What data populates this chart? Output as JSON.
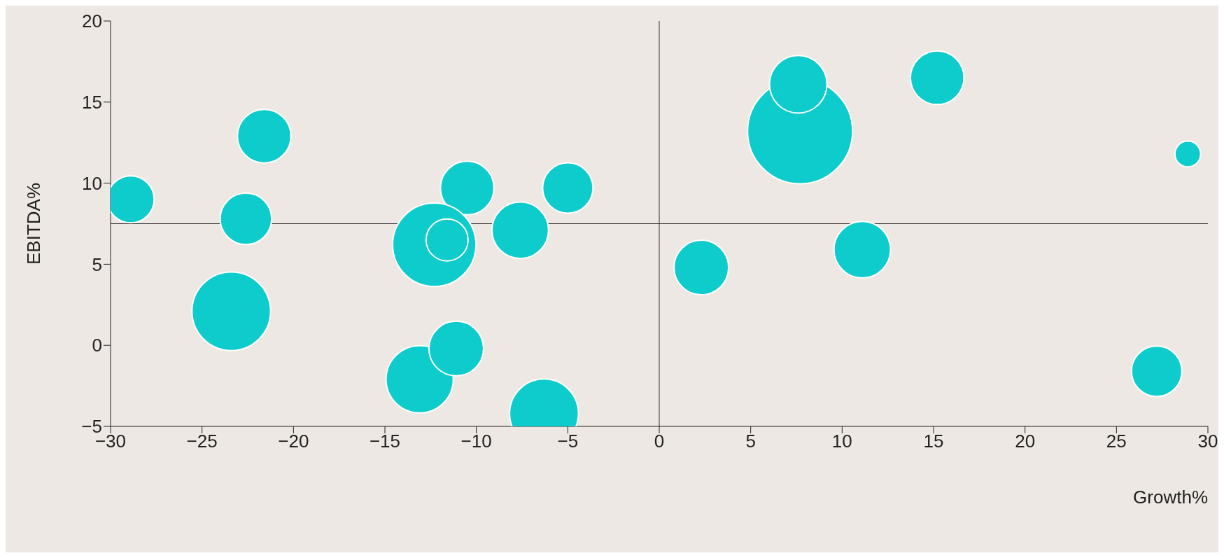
{
  "chart_data": {
    "type": "bubble",
    "xlabel": "Growth%",
    "ylabel": "EBITDA%",
    "xlim": [
      -30,
      30
    ],
    "xticks": [
      -30,
      -25,
      -20,
      -15,
      -10,
      -5,
      0,
      5,
      10,
      15,
      20,
      25,
      30
    ],
    "ylim": [
      -5,
      20
    ],
    "yticks": [
      -5,
      0,
      5,
      10,
      15,
      20
    ],
    "grid": false,
    "legend": false,
    "ref_lines": [
      {
        "axis": "x",
        "value": 0,
        "color": "#333333"
      },
      {
        "axis": "y",
        "value": 7.5,
        "color": "#333333"
      }
    ],
    "series": [
      {
        "color": "#0ecccc",
        "x": [
          -28.9,
          -21.6,
          -22.6,
          -23.4,
          -10.5,
          -5.0,
          -7.6,
          -12.3,
          -11.6,
          -13.1,
          -11.1,
          -6.3,
          2.3,
          7.7,
          7.6,
          15.2,
          11.1,
          28.9,
          27.2
        ],
        "values": [
          9.0,
          12.9,
          7.8,
          2.1,
          9.7,
          9.7,
          7.1,
          6.2,
          6.5,
          -2.1,
          -0.2,
          -4.2,
          4.8,
          13.2,
          16.1,
          16.5,
          5.9,
          11.8,
          -1.6
        ],
        "sizes": [
          0.2,
          0.26,
          0.24,
          0.56,
          0.26,
          0.23,
          0.29,
          0.63,
          0.16,
          0.41,
          0.27,
          0.43,
          0.27,
          1,
          0.3,
          0.26,
          0.29,
          0.06,
          0.23
        ]
      }
    ]
  }
}
